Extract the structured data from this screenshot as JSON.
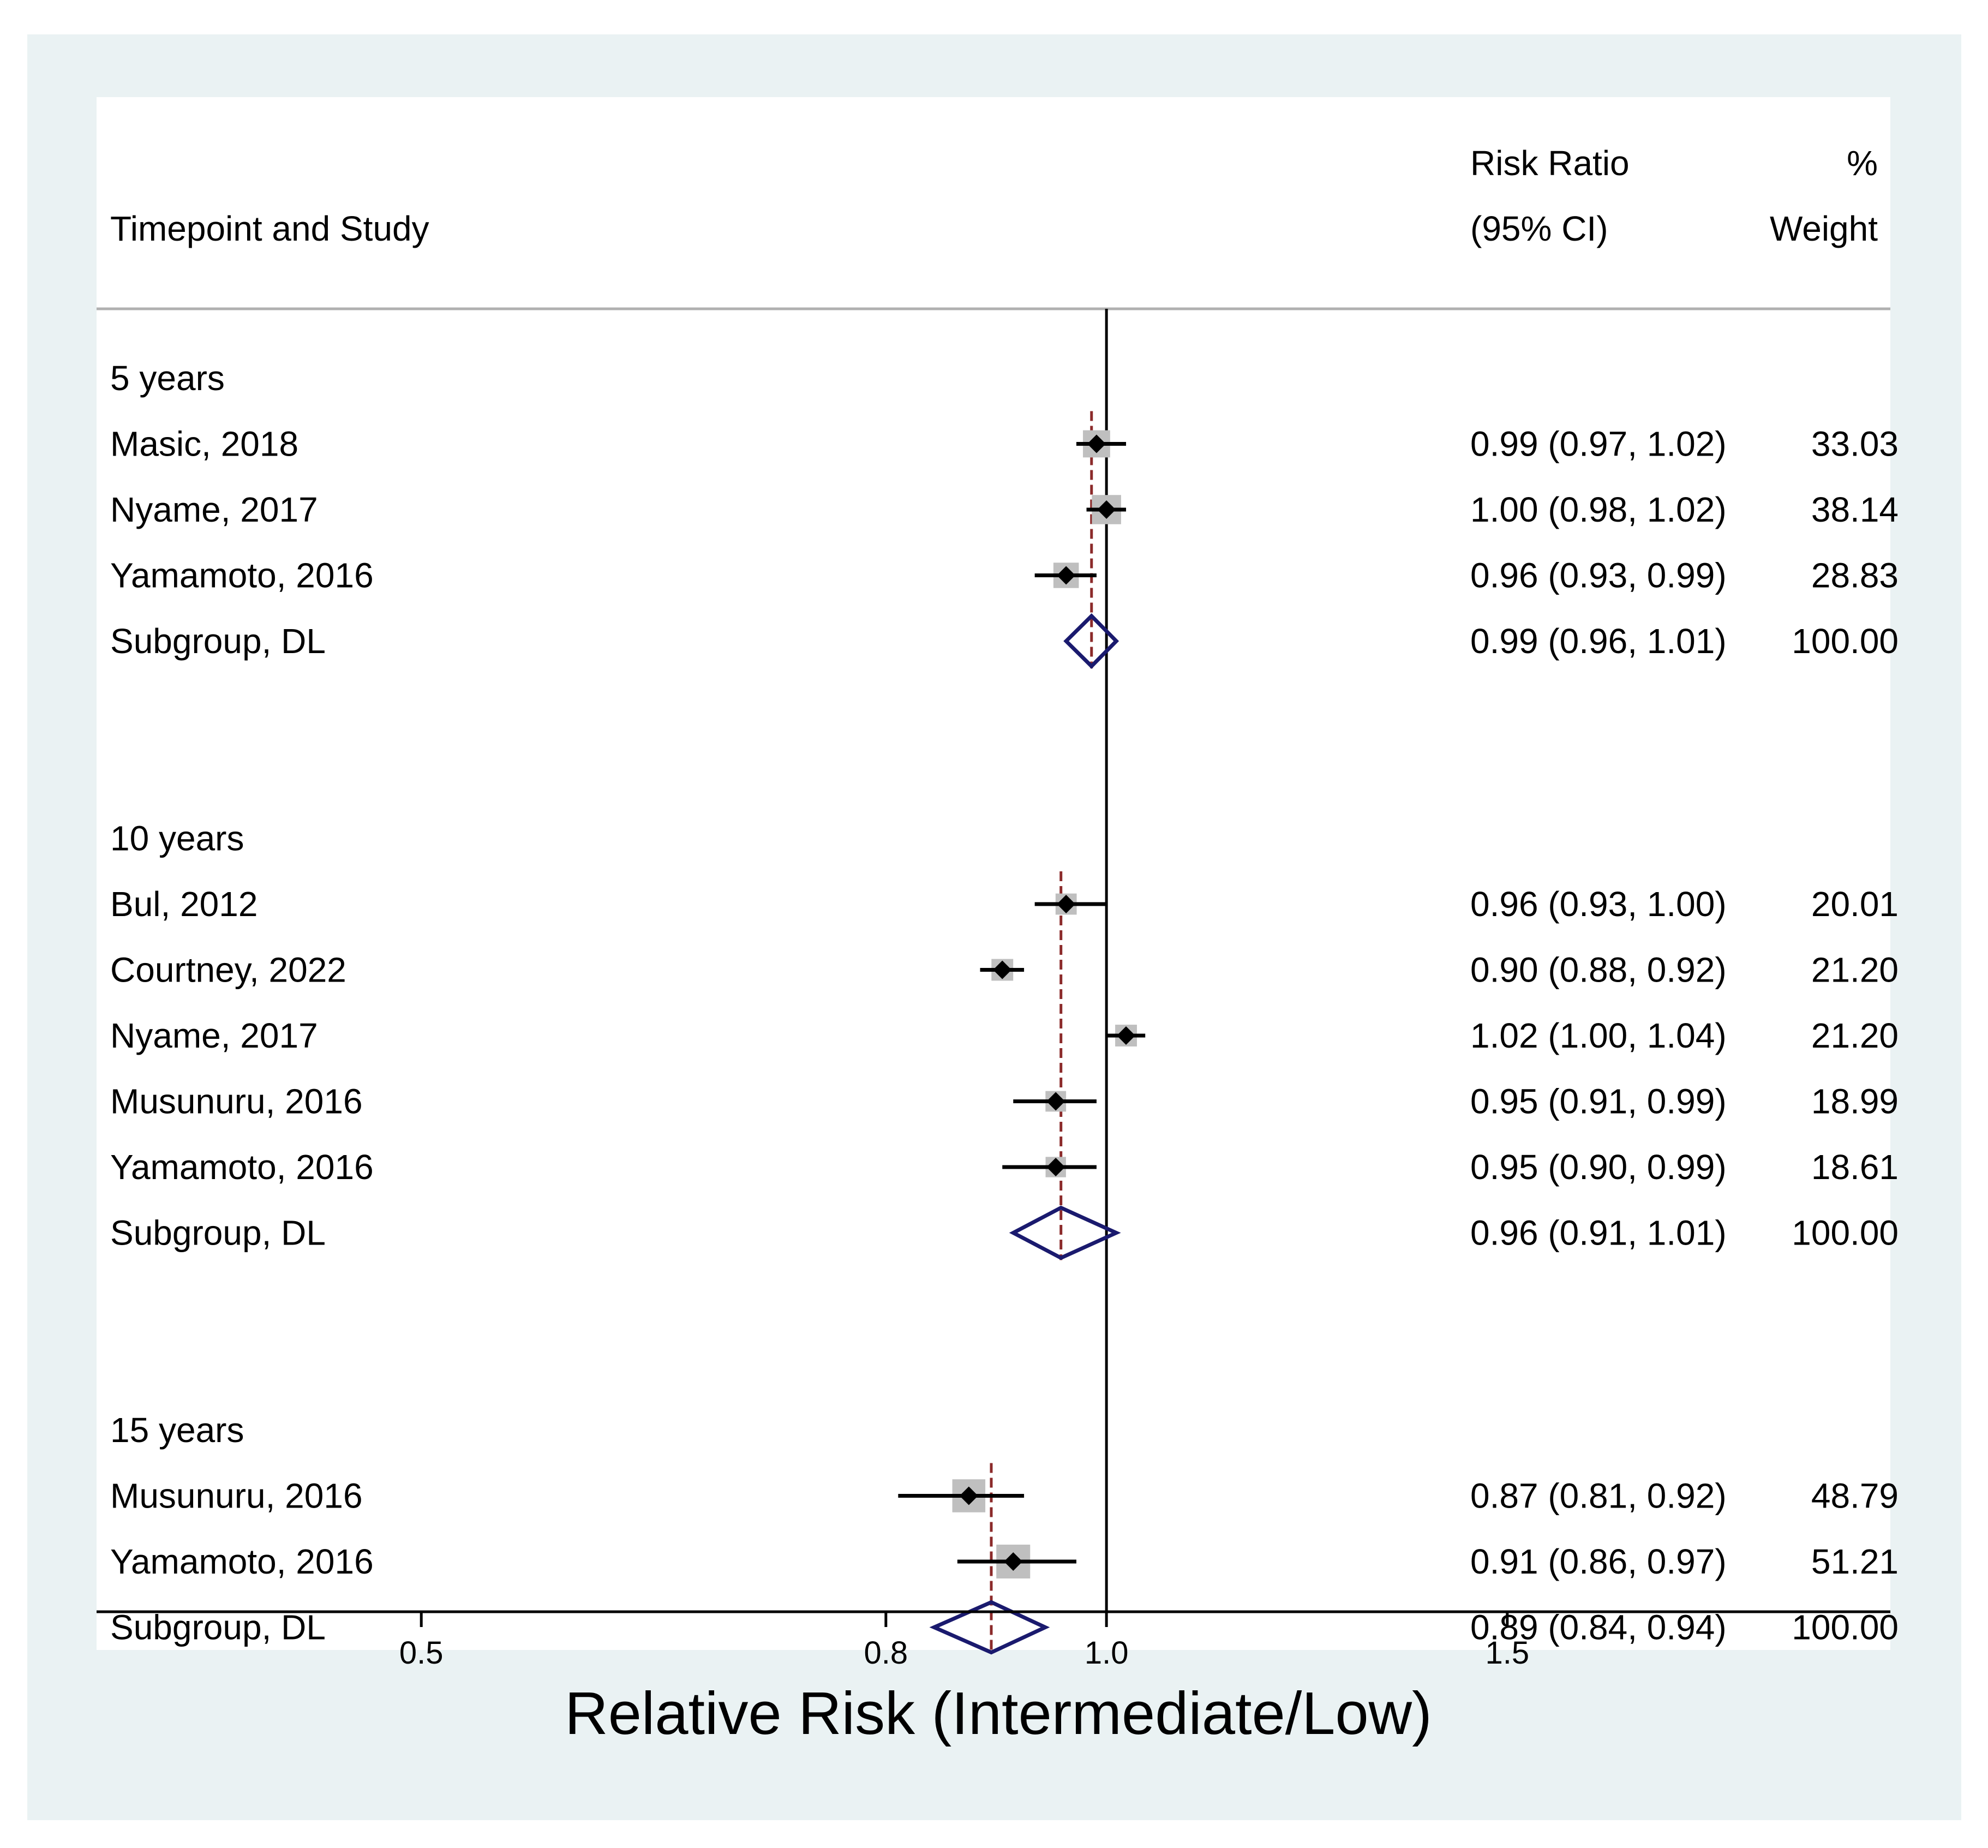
{
  "chart_data": {
    "type": "forest",
    "header": {
      "left_label": "Timepoint and Study",
      "rr_label_line1": "Risk Ratio",
      "rr_label_line2": "(95% CI)",
      "weight_label_line1": "%",
      "weight_label_line2": "Weight"
    },
    "xlabel": "Relative Risk (Intermediate/Low)",
    "xscale": "log",
    "xlim": [
      0.36,
      2.21
    ],
    "xticks": [
      {
        "value": 0.5,
        "label": "0.5"
      },
      {
        "value": 0.8,
        "label": "0.8"
      },
      {
        "value": 1.0,
        "label": "1.0"
      },
      {
        "value": 1.5,
        "label": "1.5"
      }
    ],
    "null_line": 1.0,
    "subgroups": [
      {
        "label": "5 years",
        "studies": [
          {
            "label": "Masic, 2018",
            "rr": 0.99,
            "lo": 0.97,
            "hi": 1.02,
            "rr_text": "0.99 (0.97, 1.02)",
            "weight": 33.03,
            "weight_text": "33.03"
          },
          {
            "label": "Nyame, 2017",
            "rr": 1.0,
            "lo": 0.98,
            "hi": 1.02,
            "rr_text": "1.00 (0.98, 1.02)",
            "weight": 38.14,
            "weight_text": "38.14"
          },
          {
            "label": "Yamamoto, 2016",
            "rr": 0.96,
            "lo": 0.93,
            "hi": 0.99,
            "rr_text": "0.96 (0.93, 0.99)",
            "weight": 28.83,
            "weight_text": "28.83"
          }
        ],
        "pooled": {
          "label": "Subgroup, DL",
          "rr": 0.985,
          "lo": 0.96,
          "hi": 1.01,
          "rr_text": "0.99 (0.96, 1.01)",
          "weight_text": "100.00"
        }
      },
      {
        "label": "10 years",
        "studies": [
          {
            "label": "Bul, 2012",
            "rr": 0.96,
            "lo": 0.93,
            "hi": 1.0,
            "rr_text": "0.96 (0.93, 1.00)",
            "weight": 20.01,
            "weight_text": "20.01"
          },
          {
            "label": "Courtney, 2022",
            "rr": 0.9,
            "lo": 0.88,
            "hi": 0.92,
            "rr_text": "0.90 (0.88, 0.92)",
            "weight": 21.2,
            "weight_text": "21.20"
          },
          {
            "label": "Nyame, 2017",
            "rr": 1.02,
            "lo": 1.0,
            "hi": 1.04,
            "rr_text": "1.02 (1.00, 1.04)",
            "weight": 21.2,
            "weight_text": "21.20"
          },
          {
            "label": "Musunuru, 2016",
            "rr": 0.95,
            "lo": 0.91,
            "hi": 0.99,
            "rr_text": "0.95 (0.91, 0.99)",
            "weight": 18.99,
            "weight_text": "18.99"
          },
          {
            "label": "Yamamoto, 2016",
            "rr": 0.95,
            "lo": 0.9,
            "hi": 0.99,
            "rr_text": "0.95 (0.90, 0.99)",
            "weight": 18.61,
            "weight_text": "18.61"
          }
        ],
        "pooled": {
          "label": "Subgroup, DL",
          "rr": 0.955,
          "lo": 0.91,
          "hi": 1.01,
          "rr_text": "0.96 (0.91, 1.01)",
          "weight_text": "100.00"
        }
      },
      {
        "label": "15 years",
        "studies": [
          {
            "label": "Musunuru, 2016",
            "rr": 0.87,
            "lo": 0.81,
            "hi": 0.92,
            "rr_text": "0.87 (0.81, 0.92)",
            "weight": 48.79,
            "weight_text": "48.79"
          },
          {
            "label": "Yamamoto, 2016",
            "rr": 0.91,
            "lo": 0.86,
            "hi": 0.97,
            "rr_text": "0.91 (0.86, 0.97)",
            "weight": 51.21,
            "weight_text": "51.21"
          }
        ],
        "pooled": {
          "label": "Subgroup, DL",
          "rr": 0.89,
          "lo": 0.84,
          "hi": 0.94,
          "rr_text": "0.89 (0.84, 0.94)",
          "weight_text": "100.00"
        }
      }
    ],
    "colors": {
      "panel_background": "#eaf2f3",
      "plot_background": "#ffffff",
      "weight_box": "#bfbfbf",
      "point_estimate": "#000000",
      "ci_line": "#000000",
      "pooled_diamond": "#1a1a6e",
      "pooled_line": "#8b2a2a",
      "null_line": "#000000",
      "header_rule": "#b0b0b0"
    }
  }
}
